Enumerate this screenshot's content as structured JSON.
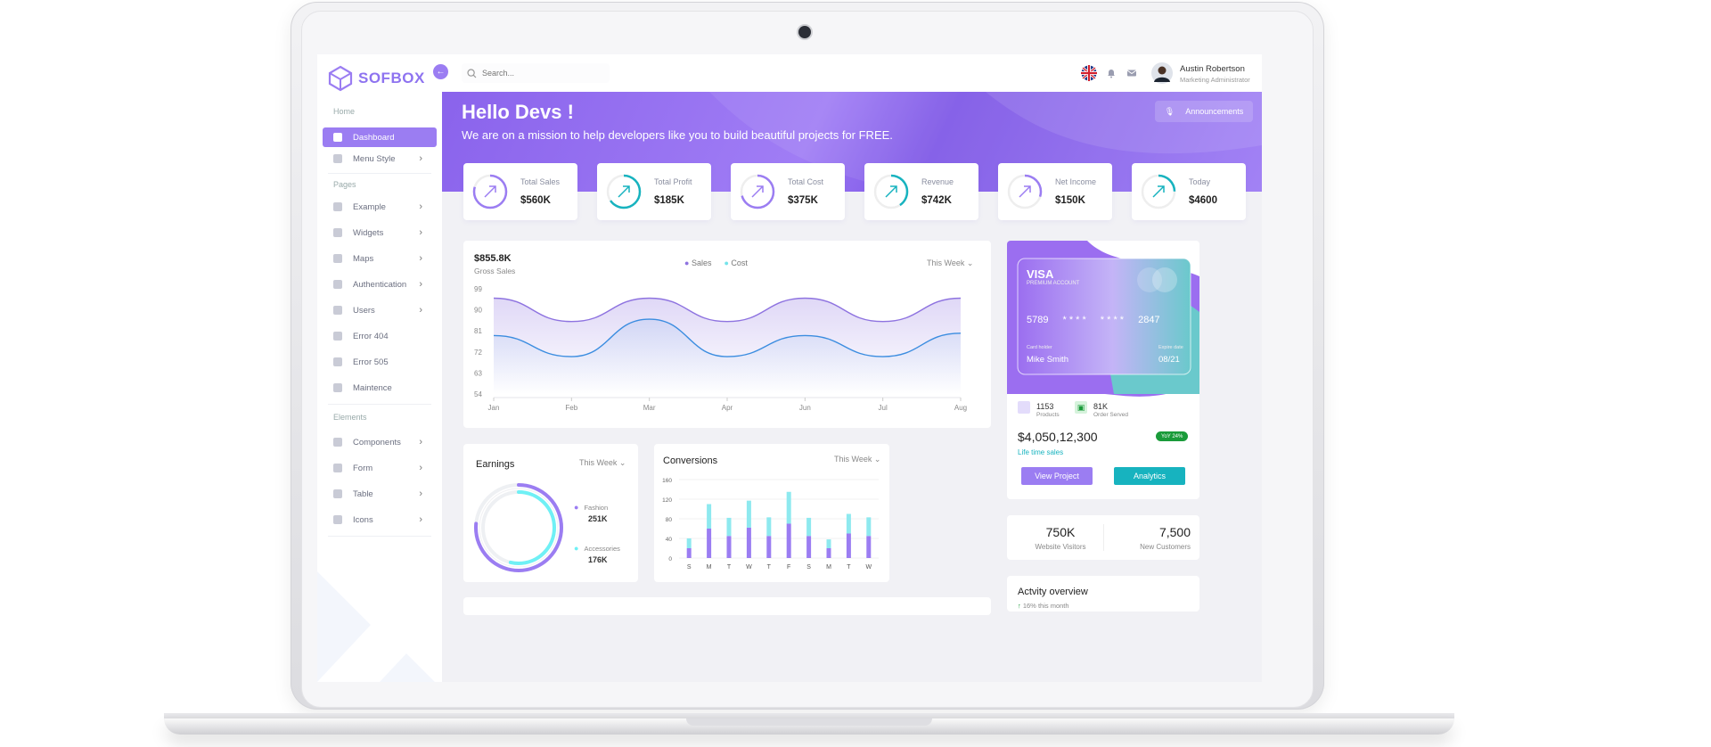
{
  "brand": {
    "name": "SOFBOX",
    "accent": "#9b7df2",
    "teal": "#17b3bf"
  },
  "search": {
    "placeholder": "Search..."
  },
  "user": {
    "name": "Austin Robertson",
    "role": "Marketing Administrator"
  },
  "sidebar": {
    "sections": [
      "Home",
      "Pages",
      "Elements"
    ],
    "items": [
      {
        "label": "Dashboard",
        "icon": "dashboard-icon"
      },
      {
        "label": "Menu Style",
        "icon": "menu-style-icon"
      },
      {
        "label": "Example",
        "icon": "example-icon"
      },
      {
        "label": "Widgets",
        "icon": "widgets-icon"
      },
      {
        "label": "Maps",
        "icon": "map-pin-icon"
      },
      {
        "label": "Authentication",
        "icon": "shield-icon"
      },
      {
        "label": "Users",
        "icon": "users-icon"
      },
      {
        "label": "Error 404",
        "icon": "error-icon"
      },
      {
        "label": "Error 505",
        "icon": "warning-icon"
      },
      {
        "label": "Maintence",
        "icon": "maintenance-icon"
      },
      {
        "label": "Components",
        "icon": "components-icon"
      },
      {
        "label": "Form",
        "icon": "form-icon"
      },
      {
        "label": "Table",
        "icon": "table-icon"
      },
      {
        "label": "Icons",
        "icon": "info-icon"
      }
    ]
  },
  "hero": {
    "title": "Hello Devs !",
    "subtitle": "We are on a mission to help developers like you to build beautiful projects for FREE.",
    "announcements": "Announcements"
  },
  "stats": [
    {
      "label": "Total Sales",
      "value": "$560K",
      "color": "#9b7df2",
      "fill": 0.8
    },
    {
      "label": "Total Profit",
      "value": "$185K",
      "color": "#17b3bf",
      "fill": 0.65
    },
    {
      "label": "Total Cost",
      "value": "$375K",
      "color": "#9b7df2",
      "fill": 0.7
    },
    {
      "label": "Revenue",
      "value": "$742K",
      "color": "#17b3bf",
      "fill": 0.4
    },
    {
      "label": "Net Income",
      "value": "$150K",
      "color": "#9b7df2",
      "fill": 0.3
    },
    {
      "label": "Today",
      "value": "$4600",
      "color": "#17b3bf",
      "fill": 0.25
    }
  ],
  "gross": {
    "value": "$855.8K",
    "label": "Gross Sales",
    "legend": [
      "Sales",
      "Cost"
    ],
    "range": "This Week"
  },
  "chart_data": [
    {
      "type": "line",
      "title": "",
      "xlabel": "",
      "ylabel": "",
      "categories": [
        "Jan",
        "Feb",
        "Mar",
        "Apr",
        "Jun",
        "Jul",
        "Aug"
      ],
      "y_ticks": [
        99,
        90,
        81,
        72,
        63,
        54
      ],
      "ylim": [
        54,
        99
      ],
      "legend": "top-center",
      "grid": false,
      "series": [
        {
          "name": "Sales",
          "color": "#8e73e0",
          "values": [
            95,
            85,
            95,
            85,
            95,
            85,
            95
          ]
        },
        {
          "name": "Cost",
          "color": "#3b8de0",
          "values": [
            79,
            70,
            86,
            70,
            79,
            70,
            80
          ]
        }
      ]
    },
    {
      "type": "bar",
      "title": "Conversions",
      "xlabel": "",
      "ylabel": "",
      "categories": [
        "S",
        "M",
        "T",
        "W",
        "T",
        "F",
        "S",
        "M",
        "T",
        "W"
      ],
      "y_ticks": [
        160,
        120,
        80,
        40,
        0
      ],
      "ylim": [
        0,
        160
      ],
      "grid": true,
      "series": [
        {
          "name": "",
          "color": "#9b7df2",
          "values": [
            20,
            60,
            45,
            62,
            45,
            70,
            45,
            20,
            50,
            45
          ]
        },
        {
          "name": "",
          "color": "#8ee9ef",
          "values": [
            20,
            50,
            37,
            55,
            38,
            65,
            37,
            18,
            40,
            38
          ]
        }
      ]
    },
    {
      "type": "pie",
      "title": "Earnings",
      "categories": [
        "Fashion",
        "Accessories"
      ],
      "values": [
        251,
        176
      ],
      "colors": [
        "#9b7df2",
        "#6ff0f5"
      ],
      "labels": [
        "251K",
        "176K"
      ]
    }
  ],
  "earnings": {
    "title": "Earnings",
    "range": "This Week"
  },
  "conversions": {
    "title": "Conversions",
    "range": "This Week"
  },
  "card": {
    "brand": "VISA",
    "type": "PREMIUM ACCOUNT",
    "n1": "5789",
    "n2": "* * * *",
    "n3": "* * * *",
    "n4": "2847",
    "holder_label": "Card holder",
    "holder": "Mike Smith",
    "expire_label": "Expire date",
    "expire": "08/21"
  },
  "products": {
    "count": "1153",
    "label": "Products",
    "served": "81K",
    "served_label": "Order Served"
  },
  "lifetime": {
    "amount": "$4,050,12,300",
    "label": "Life time sales",
    "badge": "YoY 24%",
    "view": "View Project",
    "analytics": "Analytics"
  },
  "visitors": {
    "value": "750K",
    "label": "Website Visitors",
    "customers": "7,500",
    "customers_label": "New Customers"
  },
  "activity": {
    "title": "Actvity overview",
    "sub": "16% this month"
  }
}
